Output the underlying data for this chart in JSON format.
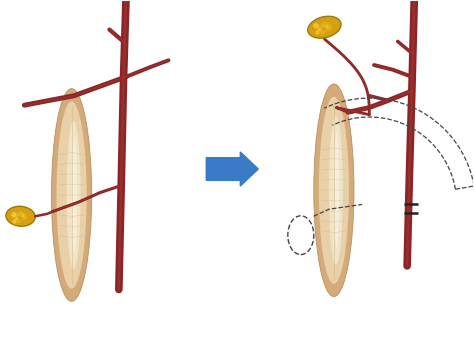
{
  "bg_color": "#ffffff",
  "arrow_color": "#3a7bc8",
  "vessel_color": "#8b2525",
  "vessel_highlight": "#b84040",
  "muscle_outer": "#d4aa78",
  "muscle_mid": "#e8d0a8",
  "muscle_inner": "#f0e4c8",
  "muscle_highlight": "#f8f0e0",
  "muscle_fiber": "#c8a870",
  "fat_color": "#d4a010",
  "fat_highlight": "#f0c830",
  "fat_edge": "#a07808",
  "dashed_color": "#444444",
  "figsize": [
    4.74,
    3.38
  ],
  "dpi": 100
}
